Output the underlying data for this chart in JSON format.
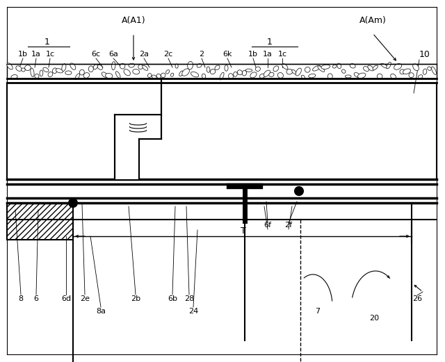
{
  "bg_color": "#ffffff",
  "fig_width": 6.4,
  "fig_height": 5.21,
  "labels": {
    "A_A1": "A(A1)",
    "A_Am": "A(Am)",
    "lbl_1_left": "1",
    "lbl_1_right": "1",
    "lbl_10": "10",
    "lbl_1b_left": "1b",
    "lbl_1a_left": "1a",
    "lbl_1c_left": "1c",
    "lbl_6c": "6c",
    "lbl_6a": "6a",
    "lbl_2a": "2a",
    "lbl_2c": "2c",
    "lbl_2": "2",
    "lbl_6k": "6k",
    "lbl_1b_right": "1b",
    "lbl_1a_right": "1a",
    "lbl_1c_right": "1c",
    "lbl_8": "8",
    "lbl_6": "6",
    "lbl_6d": "6d",
    "lbl_2e": "2e",
    "lbl_8a": "8a",
    "lbl_2b": "2b",
    "lbl_6b": "6b",
    "lbl_28": "28",
    "lbl_24": "24",
    "lbl_6f": "6f",
    "lbl_2f": "2f",
    "lbl_T": "T",
    "lbl_7": "7",
    "lbl_20": "20",
    "lbl_26": "26"
  }
}
